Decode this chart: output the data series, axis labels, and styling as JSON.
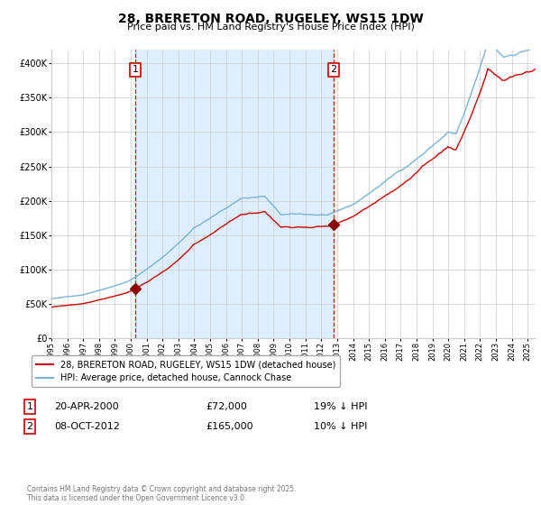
{
  "title": "28, BRERETON ROAD, RUGELEY, WS15 1DW",
  "subtitle": "Price paid vs. HM Land Registry's House Price Index (HPI)",
  "legend_property": "28, BRERETON ROAD, RUGELEY, WS15 1DW (detached house)",
  "legend_hpi": "HPI: Average price, detached house, Cannock Chase",
  "sale1_date": "20-APR-2000",
  "sale1_price": 72000,
  "sale1_label": "19% ↓ HPI",
  "sale2_date": "08-OCT-2012",
  "sale2_price": 165000,
  "sale2_label": "10% ↓ HPI",
  "sale1_year": 2000.29,
  "sale2_year": 2012.77,
  "year_start": 1995.0,
  "year_end": 2025.5,
  "ylim_min": 0,
  "ylim_max": 420000,
  "hpi_color": "#7ab3d8",
  "property_color": "#cc0000",
  "vline_color": "#cc0000",
  "shade_color": "#ddeeff",
  "marker_color": "#8b0000",
  "footnote": "Contains HM Land Registry data © Crown copyright and database right 2025.\nThis data is licensed under the Open Government Licence v3.0.",
  "background_color": "#ffffff",
  "grid_color": "#cccccc"
}
